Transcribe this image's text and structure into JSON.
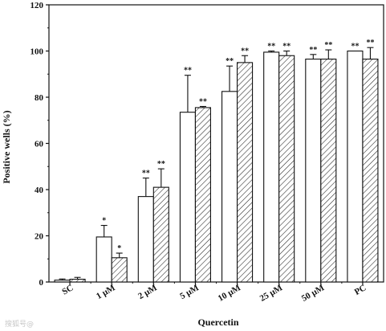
{
  "chart_data": {
    "type": "bar",
    "xlabel": "Quercetin",
    "ylabel": "Positive wells (%)",
    "ylim": [
      0,
      120
    ],
    "yticks": [
      0,
      20,
      40,
      60,
      80,
      100,
      120
    ],
    "categories": [
      "SC",
      "1 µM",
      "2 µM",
      "5 µM",
      "10 µM",
      "25 µM",
      "50 µM",
      "PC"
    ],
    "series": [
      {
        "fill": "open",
        "values": [
          0.8,
          19.5,
          37,
          73.5,
          82.5,
          99.5,
          96.5,
          100
        ],
        "errors": [
          0.5,
          5,
          8,
          16,
          11,
          0.5,
          2,
          0
        ],
        "significance": [
          "",
          "*",
          "**",
          "**",
          "**",
          "**",
          "**",
          "**"
        ]
      },
      {
        "fill": "hatched",
        "values": [
          1.2,
          10.5,
          41,
          75.5,
          95,
          98,
          96.5,
          96.5
        ],
        "errors": [
          0.8,
          2,
          8,
          0.5,
          3,
          2,
          4,
          5
        ],
        "significance": [
          "",
          "*",
          "**",
          "**",
          "**",
          "**",
          "**",
          "**"
        ]
      }
    ],
    "grid": false,
    "legend": "none"
  },
  "watermark": "搜狐号@"
}
